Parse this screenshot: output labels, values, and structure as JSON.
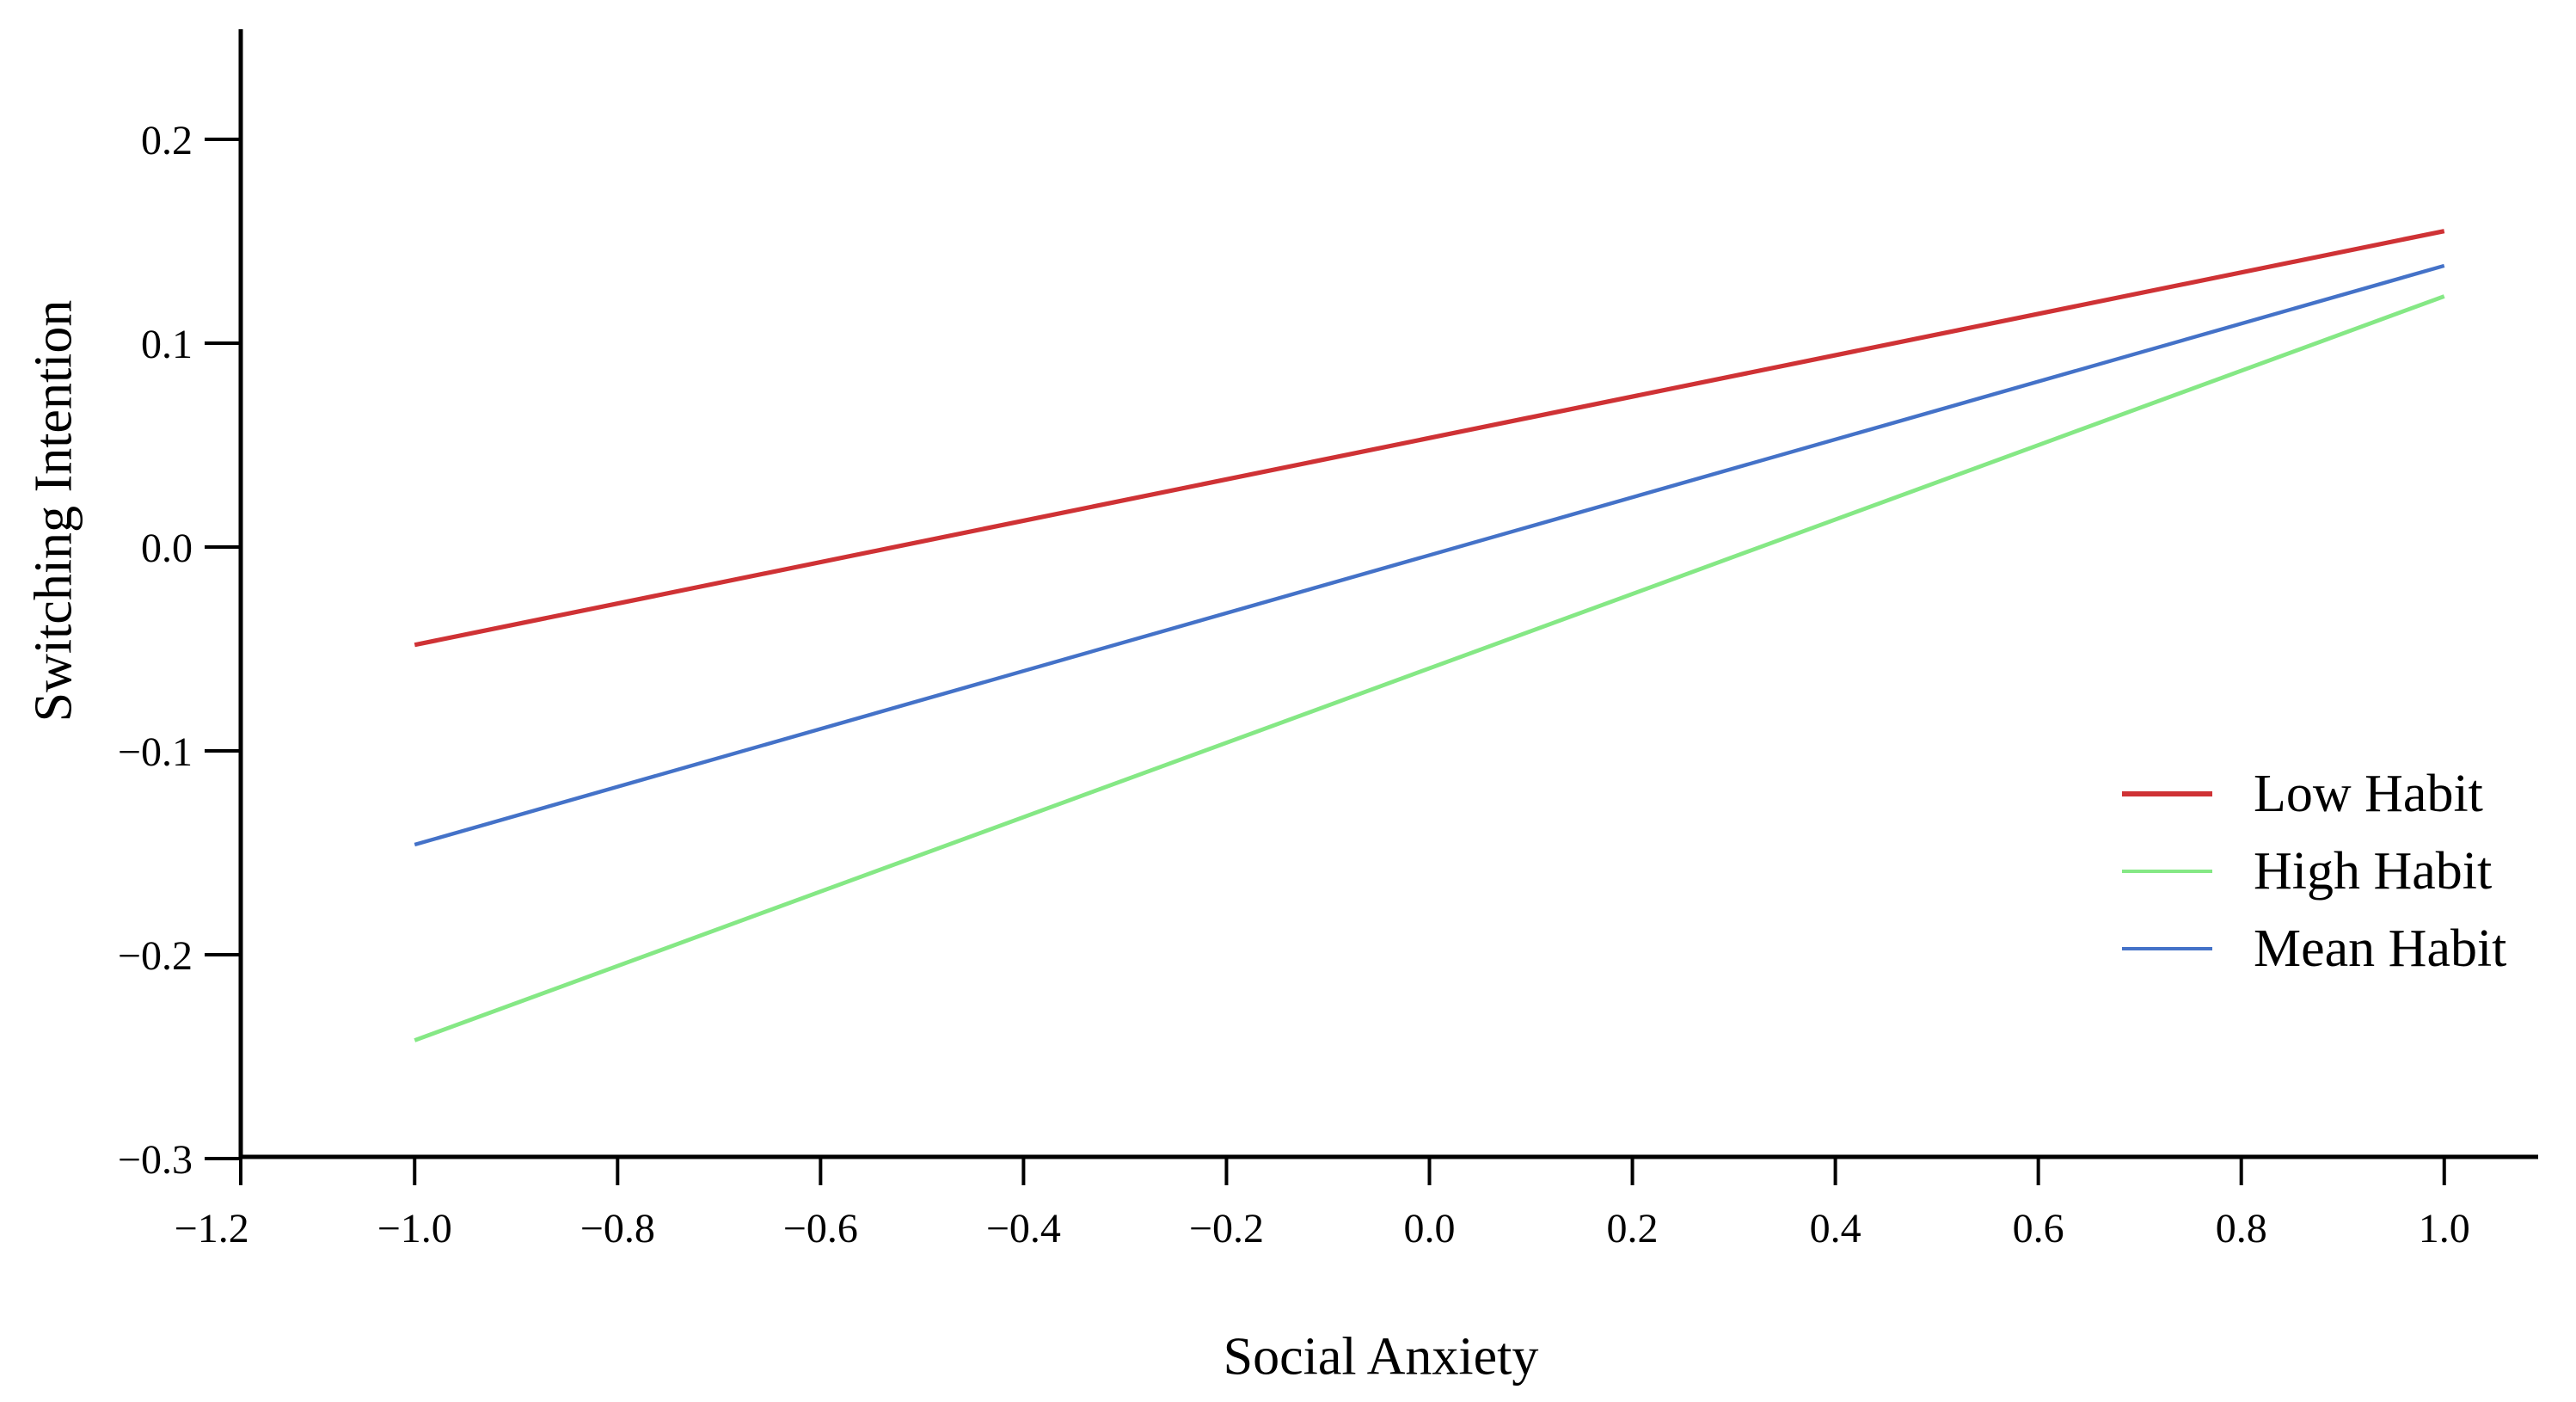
{
  "figure": {
    "background": "#ffffff",
    "axis_color": "#000000",
    "text_color": "#000000"
  },
  "chart_data": {
    "type": "line",
    "title": "",
    "xlabel": "Social Anxiety",
    "ylabel": "Switching Intention",
    "xlim": [
      -1.2,
      1.09
    ],
    "ylim": [
      -0.3,
      0.254
    ],
    "grid": false,
    "legend_position": "right-middle",
    "x_ticks": {
      "values": [
        -1.2,
        -1.0,
        -0.8,
        -0.6,
        -0.4,
        -0.2,
        0.0,
        0.2,
        0.4,
        0.6,
        0.8,
        1.0
      ],
      "labels": [
        "−1.2",
        "−1.0",
        "−0.8",
        "−0.6",
        "−0.4",
        "−0.2",
        "0.0",
        "0.2",
        "0.4",
        "0.6",
        "0.8",
        "1.0"
      ]
    },
    "y_ticks": {
      "values": [
        0.2,
        0.1,
        0.0,
        -0.1,
        -0.2,
        -0.3
      ],
      "labels": [
        "0.2",
        "0.1",
        "0.0",
        "−0.1",
        "−0.2",
        "−0.3"
      ]
    },
    "series": [
      {
        "name": "Low Habit",
        "color": "#cf3235",
        "stroke_width": 5.2,
        "x": [
          -1.0,
          1.0
        ],
        "y": [
          -0.048,
          0.155
        ]
      },
      {
        "name": "High Habit",
        "color": "#85e885",
        "stroke_width": 4.8,
        "x": [
          -1.0,
          1.0
        ],
        "y": [
          -0.242,
          0.123
        ]
      },
      {
        "name": "Mean Habit",
        "color": "#4472c8",
        "stroke_width": 4.4,
        "x": [
          -1.0,
          1.0
        ],
        "y": [
          -0.146,
          0.138
        ]
      }
    ]
  }
}
